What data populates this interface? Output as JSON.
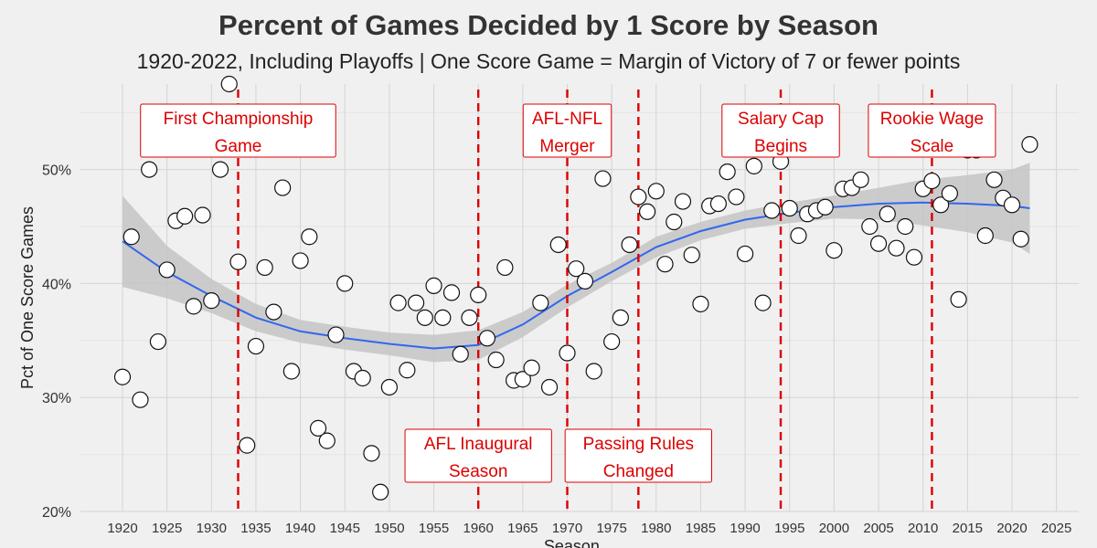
{
  "chart_data": {
    "type": "scatter",
    "title": "Percent of Games Decided by 1 Score by Season",
    "subtitle": "1920-2022, Including Playoffs | One Score Game = Margin of Victory of 7 or fewer points",
    "xlabel": "Season",
    "ylabel": "Pct of One Score Games",
    "xlim": [
      1918,
      2025
    ],
    "ylim": [
      20,
      57.5
    ],
    "x_ticks": [
      1920,
      1925,
      1930,
      1935,
      1940,
      1945,
      1950,
      1955,
      1960,
      1965,
      1970,
      1975,
      1980,
      1985,
      1990,
      1995,
      2000,
      2005,
      2010,
      2015,
      2020,
      2025
    ],
    "y_ticks": [
      20,
      30,
      40,
      50
    ],
    "y_tick_labels": [
      "20%",
      "30%",
      "40%",
      "50%"
    ],
    "grid": true,
    "colors": {
      "background": "#f0f0f0",
      "grid": "#d4d4d4",
      "point_fill": "#ffffff",
      "point_stroke": "#111111",
      "trend_line": "#3366ee",
      "confidence_band": "#c4c4c4",
      "event_line": "#dd0000",
      "annotation_text": "#dd0000"
    },
    "points": [
      {
        "x": 1920,
        "y": 31.8
      },
      {
        "x": 1921,
        "y": 44.1
      },
      {
        "x": 1922,
        "y": 29.8
      },
      {
        "x": 1923,
        "y": 50.0
      },
      {
        "x": 1924,
        "y": 34.9
      },
      {
        "x": 1925,
        "y": 41.2
      },
      {
        "x": 1926,
        "y": 45.5
      },
      {
        "x": 1927,
        "y": 45.9
      },
      {
        "x": 1928,
        "y": 38.0
      },
      {
        "x": 1929,
        "y": 46.0
      },
      {
        "x": 1930,
        "y": 38.5
      },
      {
        "x": 1931,
        "y": 50.0
      },
      {
        "x": 1932,
        "y": 57.5
      },
      {
        "x": 1933,
        "y": 41.9
      },
      {
        "x": 1934,
        "y": 25.8
      },
      {
        "x": 1935,
        "y": 34.5
      },
      {
        "x": 1936,
        "y": 41.4
      },
      {
        "x": 1937,
        "y": 37.5
      },
      {
        "x": 1938,
        "y": 48.4
      },
      {
        "x": 1939,
        "y": 32.3
      },
      {
        "x": 1940,
        "y": 42.0
      },
      {
        "x": 1941,
        "y": 44.1
      },
      {
        "x": 1942,
        "y": 27.3
      },
      {
        "x": 1943,
        "y": 26.2
      },
      {
        "x": 1944,
        "y": 35.5
      },
      {
        "x": 1945,
        "y": 40.0
      },
      {
        "x": 1946,
        "y": 32.3
      },
      {
        "x": 1947,
        "y": 31.7
      },
      {
        "x": 1948,
        "y": 25.1
      },
      {
        "x": 1949,
        "y": 21.7
      },
      {
        "x": 1950,
        "y": 30.9
      },
      {
        "x": 1951,
        "y": 38.3
      },
      {
        "x": 1952,
        "y": 32.4
      },
      {
        "x": 1953,
        "y": 38.3
      },
      {
        "x": 1954,
        "y": 37.0
      },
      {
        "x": 1955,
        "y": 39.8
      },
      {
        "x": 1956,
        "y": 37.0
      },
      {
        "x": 1957,
        "y": 39.2
      },
      {
        "x": 1958,
        "y": 33.8
      },
      {
        "x": 1959,
        "y": 37.0
      },
      {
        "x": 1960,
        "y": 39.0
      },
      {
        "x": 1961,
        "y": 35.2
      },
      {
        "x": 1962,
        "y": 33.3
      },
      {
        "x": 1963,
        "y": 41.4
      },
      {
        "x": 1964,
        "y": 31.5
      },
      {
        "x": 1965,
        "y": 31.6
      },
      {
        "x": 1966,
        "y": 32.6
      },
      {
        "x": 1967,
        "y": 38.3
      },
      {
        "x": 1968,
        "y": 30.9
      },
      {
        "x": 1969,
        "y": 43.4
      },
      {
        "x": 1970,
        "y": 33.9
      },
      {
        "x": 1971,
        "y": 41.3
      },
      {
        "x": 1972,
        "y": 40.2
      },
      {
        "x": 1973,
        "y": 32.3
      },
      {
        "x": 1974,
        "y": 49.2
      },
      {
        "x": 1975,
        "y": 34.9
      },
      {
        "x": 1976,
        "y": 37.0
      },
      {
        "x": 1977,
        "y": 43.4
      },
      {
        "x": 1978,
        "y": 47.6
      },
      {
        "x": 1979,
        "y": 46.3
      },
      {
        "x": 1980,
        "y": 48.1
      },
      {
        "x": 1981,
        "y": 41.7
      },
      {
        "x": 1982,
        "y": 45.4
      },
      {
        "x": 1983,
        "y": 47.2
      },
      {
        "x": 1984,
        "y": 42.5
      },
      {
        "x": 1985,
        "y": 38.2
      },
      {
        "x": 1986,
        "y": 46.8
      },
      {
        "x": 1987,
        "y": 47.0
      },
      {
        "x": 1988,
        "y": 49.8
      },
      {
        "x": 1989,
        "y": 47.6
      },
      {
        "x": 1990,
        "y": 42.6
      },
      {
        "x": 1991,
        "y": 50.3
      },
      {
        "x": 1992,
        "y": 38.3
      },
      {
        "x": 1993,
        "y": 46.4
      },
      {
        "x": 1994,
        "y": 50.7
      },
      {
        "x": 1995,
        "y": 46.6
      },
      {
        "x": 1996,
        "y": 44.2
      },
      {
        "x": 1997,
        "y": 46.1
      },
      {
        "x": 1998,
        "y": 46.4
      },
      {
        "x": 1999,
        "y": 46.7
      },
      {
        "x": 2000,
        "y": 42.9
      },
      {
        "x": 2001,
        "y": 48.3
      },
      {
        "x": 2002,
        "y": 48.4
      },
      {
        "x": 2003,
        "y": 49.1
      },
      {
        "x": 2004,
        "y": 45.0
      },
      {
        "x": 2005,
        "y": 43.5
      },
      {
        "x": 2006,
        "y": 46.1
      },
      {
        "x": 2007,
        "y": 43.1
      },
      {
        "x": 2008,
        "y": 45.0
      },
      {
        "x": 2009,
        "y": 42.3
      },
      {
        "x": 2010,
        "y": 48.3
      },
      {
        "x": 2011,
        "y": 49.0
      },
      {
        "x": 2012,
        "y": 46.9
      },
      {
        "x": 2013,
        "y": 47.9
      },
      {
        "x": 2014,
        "y": 38.6
      },
      {
        "x": 2015,
        "y": 51.7
      },
      {
        "x": 2016,
        "y": 51.7
      },
      {
        "x": 2017,
        "y": 44.2
      },
      {
        "x": 2018,
        "y": 49.1
      },
      {
        "x": 2019,
        "y": 47.5
      },
      {
        "x": 2020,
        "y": 46.9
      },
      {
        "x": 2021,
        "y": 43.9
      },
      {
        "x": 2022,
        "y": 52.2
      }
    ],
    "trend": {
      "x": [
        1920,
        1925,
        1930,
        1935,
        1940,
        1945,
        1950,
        1955,
        1960,
        1965,
        1970,
        1975,
        1980,
        1985,
        1990,
        1995,
        2000,
        2005,
        2010,
        2015,
        2020,
        2022
      ],
      "y": [
        43.7,
        41.0,
        38.9,
        37.0,
        35.8,
        35.2,
        34.7,
        34.3,
        34.6,
        36.4,
        38.9,
        41.0,
        43.2,
        44.6,
        45.6,
        46.2,
        46.7,
        47.0,
        47.1,
        47.0,
        46.8,
        46.6
      ],
      "lower": [
        39.7,
        38.7,
        37.4,
        35.8,
        34.8,
        34.2,
        33.7,
        33.1,
        33.3,
        35.3,
        37.9,
        40.2,
        42.3,
        43.8,
        44.8,
        45.3,
        45.7,
        45.6,
        45.1,
        44.5,
        43.6,
        42.6
      ],
      "upper": [
        47.7,
        43.3,
        40.4,
        38.2,
        36.8,
        36.2,
        35.7,
        35.5,
        35.9,
        37.5,
        39.9,
        41.8,
        44.1,
        45.4,
        46.4,
        47.1,
        47.7,
        48.4,
        49.1,
        49.5,
        50.0,
        50.6
      ]
    },
    "events": [
      {
        "x": 1933,
        "label": [
          "First Championship",
          "Game"
        ],
        "position": "top"
      },
      {
        "x": 1960,
        "label": [
          "AFL Inaugural",
          "Season"
        ],
        "position": "bottom"
      },
      {
        "x": 1970,
        "label": [
          "AFL-NFL",
          "Merger"
        ],
        "position": "top"
      },
      {
        "x": 1978,
        "label": [
          "Passing Rules",
          "Changed"
        ],
        "position": "bottom"
      },
      {
        "x": 1994,
        "label": [
          "Salary Cap",
          "Begins"
        ],
        "position": "top"
      },
      {
        "x": 2011,
        "label": [
          "Rookie Wage",
          "Scale"
        ],
        "position": "top"
      }
    ]
  }
}
